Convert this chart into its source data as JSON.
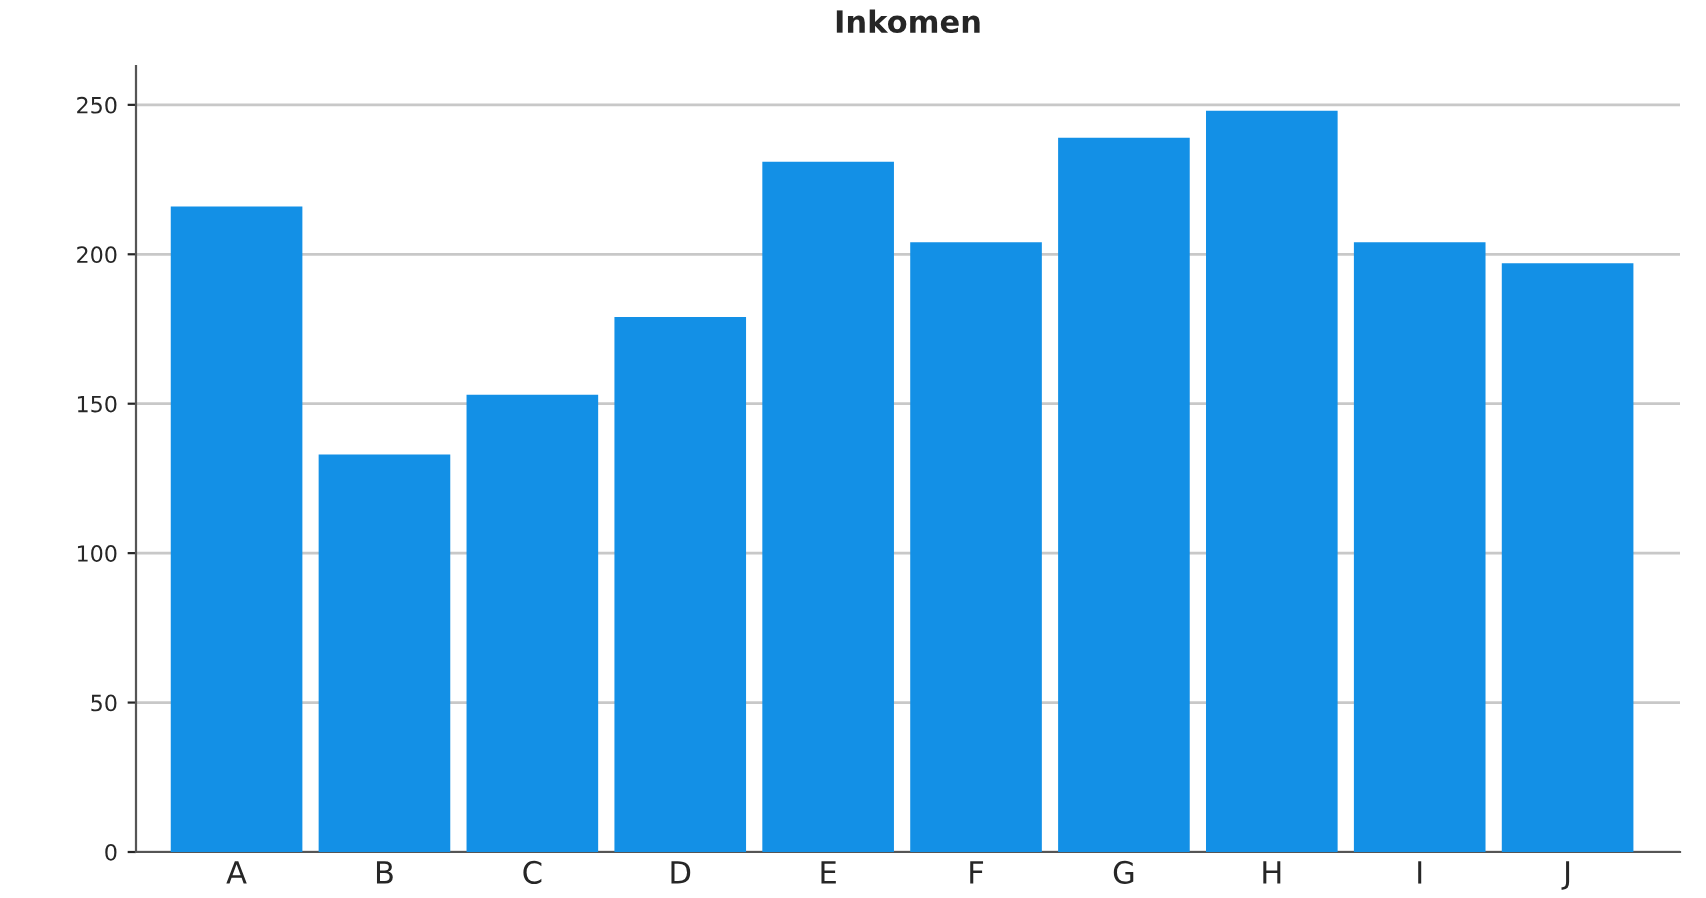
{
  "chart_data": {
    "type": "bar",
    "title": "Inkomen",
    "categories": [
      "A",
      "B",
      "C",
      "D",
      "E",
      "F",
      "G",
      "H",
      "I",
      "J"
    ],
    "values": [
      216,
      133,
      153,
      179,
      231,
      204,
      239,
      248,
      204,
      197
    ],
    "color": "#1390e6",
    "ylim": [
      0,
      263
    ],
    "yticks": [
      0,
      50,
      100,
      150,
      200,
      250
    ],
    "grid": "y",
    "legend": false
  }
}
